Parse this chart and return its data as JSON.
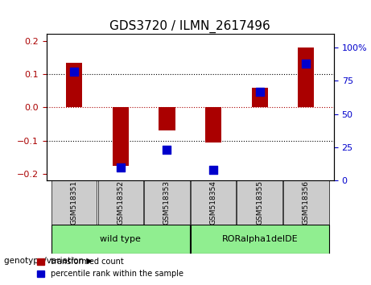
{
  "title": "GDS3720 / ILMN_2617496",
  "samples": [
    "GSM518351",
    "GSM518352",
    "GSM518353",
    "GSM518354",
    "GSM518355",
    "GSM518356"
  ],
  "red_values": [
    0.135,
    -0.175,
    -0.07,
    -0.105,
    0.06,
    0.18
  ],
  "blue_values_pct": [
    82,
    10,
    23,
    8,
    67,
    88
  ],
  "groups": [
    {
      "label": "wild type",
      "samples": [
        0,
        1,
        2
      ],
      "color": "#90EE90"
    },
    {
      "label": "RORalpha1delDE",
      "samples": [
        3,
        4,
        5
      ],
      "color": "#90EE90"
    }
  ],
  "group_bg_color": "#90EE90",
  "sample_bg_color": "#cccccc",
  "ylim_left": [
    -0.22,
    0.22
  ],
  "ylim_right": [
    0,
    110
  ],
  "yticks_left": [
    -0.2,
    -0.1,
    0,
    0.1,
    0.2
  ],
  "yticks_right": [
    0,
    25,
    50,
    75,
    100
  ],
  "ytick_labels_right": [
    "0",
    "25",
    "50",
    "75",
    "100%"
  ],
  "hlines": [
    0.0,
    0.1,
    -0.1
  ],
  "red_color": "#aa0000",
  "blue_color": "#0000cc",
  "bar_width": 0.35,
  "dot_size": 60,
  "legend_red": "transformed count",
  "legend_blue": "percentile rank within the sample",
  "genotype_label": "genotype/variation"
}
